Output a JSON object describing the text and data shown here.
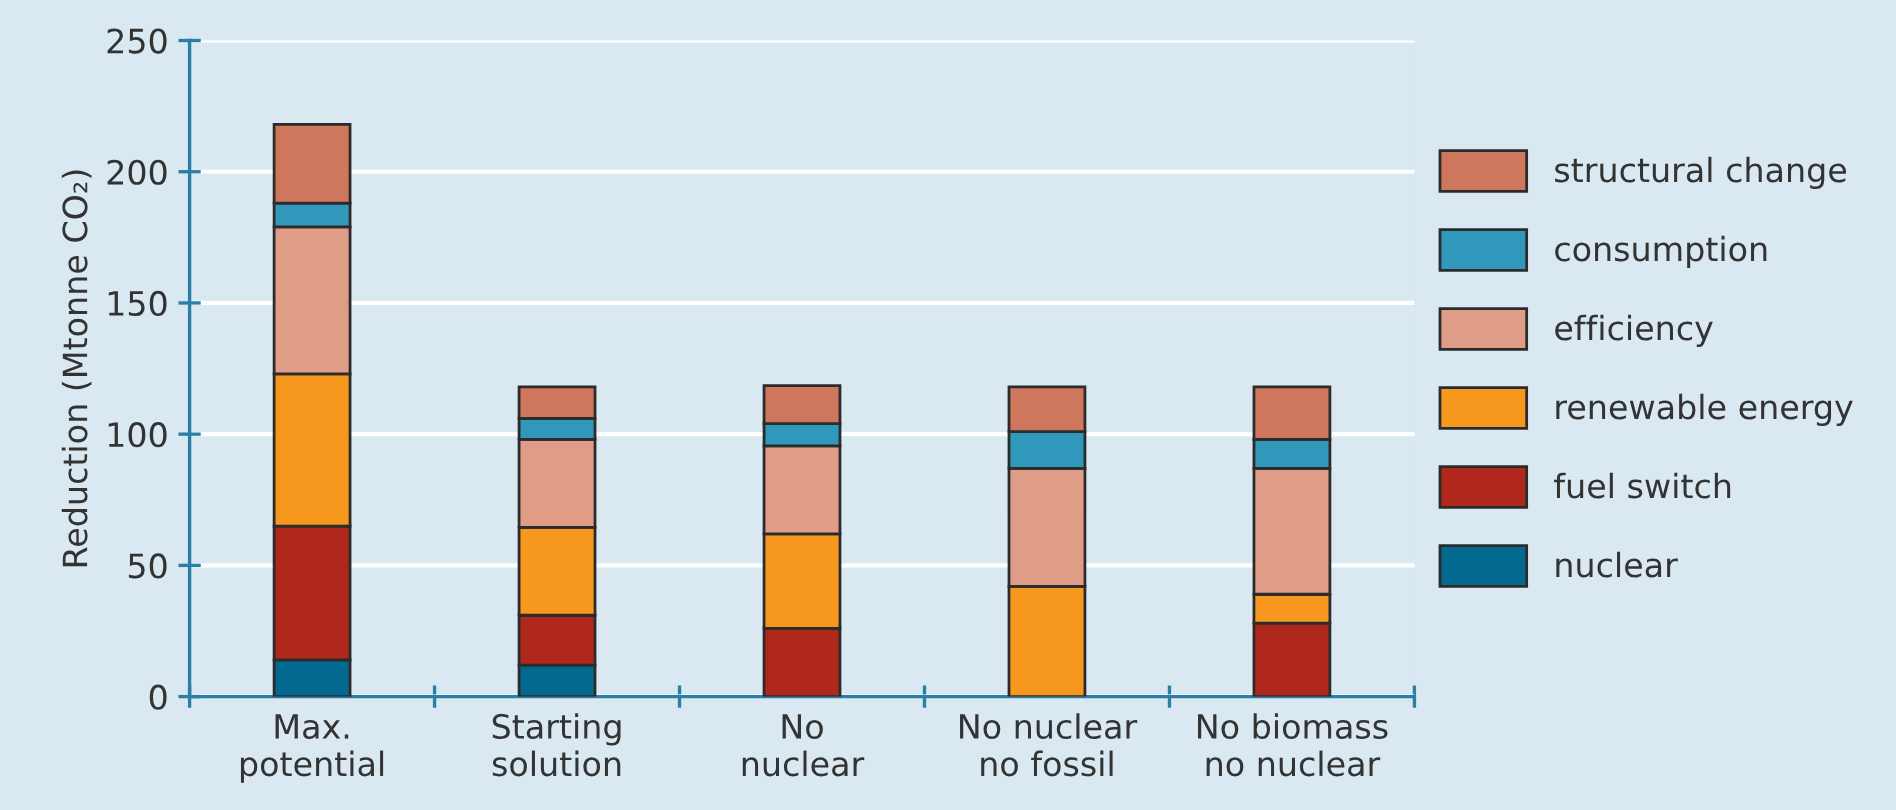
{
  "chart_data": {
    "type": "bar",
    "stacked": true,
    "ylabel": "Reduction (Mtonne CO₂)",
    "categories": [
      "Max.\npotential",
      "Starting\nsolution",
      "No\nnuclear",
      "No nuclear\nno fossil",
      "No biomass\nno nuclear"
    ],
    "series": [
      {
        "name": "nuclear",
        "color": "#036990",
        "values": [
          14,
          12,
          0,
          0,
          0
        ]
      },
      {
        "name": "fuel switch",
        "color": "#b0281c",
        "values": [
          51,
          19,
          26,
          0,
          28
        ]
      },
      {
        "name": "renewable energy",
        "color": "#f7981e",
        "values": [
          58,
          33.5,
          36,
          42,
          11
        ]
      },
      {
        "name": "efficiency",
        "color": "#df9c86",
        "values": [
          56,
          33.5,
          33.5,
          45,
          48
        ]
      },
      {
        "name": "consumption",
        "color": "#2f98bb",
        "values": [
          9,
          8,
          8.5,
          14,
          11
        ]
      },
      {
        "name": "structural change",
        "color": "#cf775c",
        "values": [
          30,
          12,
          14.5,
          17,
          20
        ]
      }
    ],
    "ylim": [
      0,
      250
    ],
    "yticks": [
      0,
      50,
      100,
      150,
      200,
      250
    ],
    "grid": "y",
    "legend": "right"
  }
}
